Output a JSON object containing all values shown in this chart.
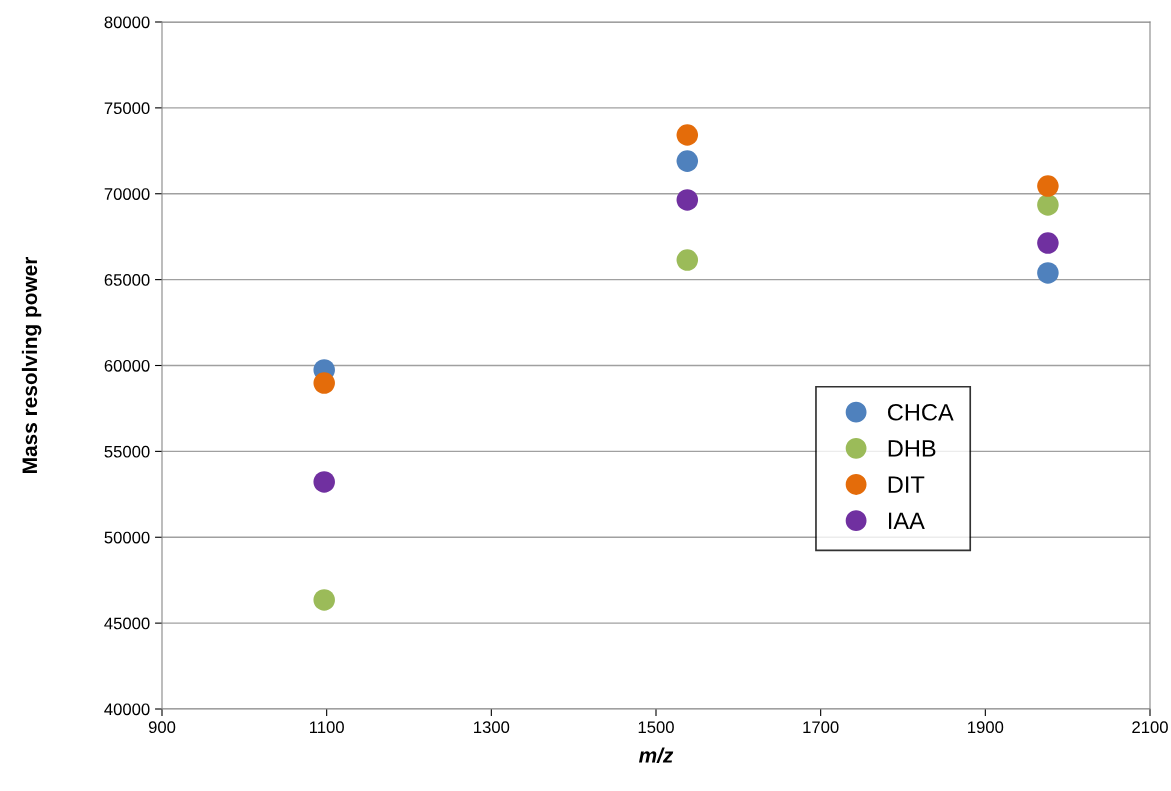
{
  "chart_data": {
    "type": "scatter",
    "xlabel": "m/z",
    "ylabel": "Mass resolving power",
    "xlim": [
      900,
      2100
    ],
    "xticks": [
      900,
      1100,
      1300,
      1500,
      1700,
      1900,
      2100
    ],
    "ylim": [
      40000,
      80000
    ],
    "yticks": [
      40000,
      45000,
      50000,
      55000,
      60000,
      65000,
      70000,
      75000,
      80000
    ],
    "grid": "y",
    "legend": "center right",
    "marker": "circle",
    "x": [
      1097,
      1538,
      1976
    ],
    "series": [
      {
        "name": "CHCA",
        "color": "#4f81bd",
        "values": [
          59740,
          71900,
          65390
        ]
      },
      {
        "name": "DHB",
        "color": "#9bbb59",
        "values": [
          46350,
          66140,
          69350
        ]
      },
      {
        "name": "DIT",
        "color": "#e46c0a",
        "values": [
          58980,
          73420,
          70450
        ]
      },
      {
        "name": "IAA",
        "color": "#7030a0",
        "values": [
          53220,
          69640,
          67130
        ]
      }
    ]
  }
}
